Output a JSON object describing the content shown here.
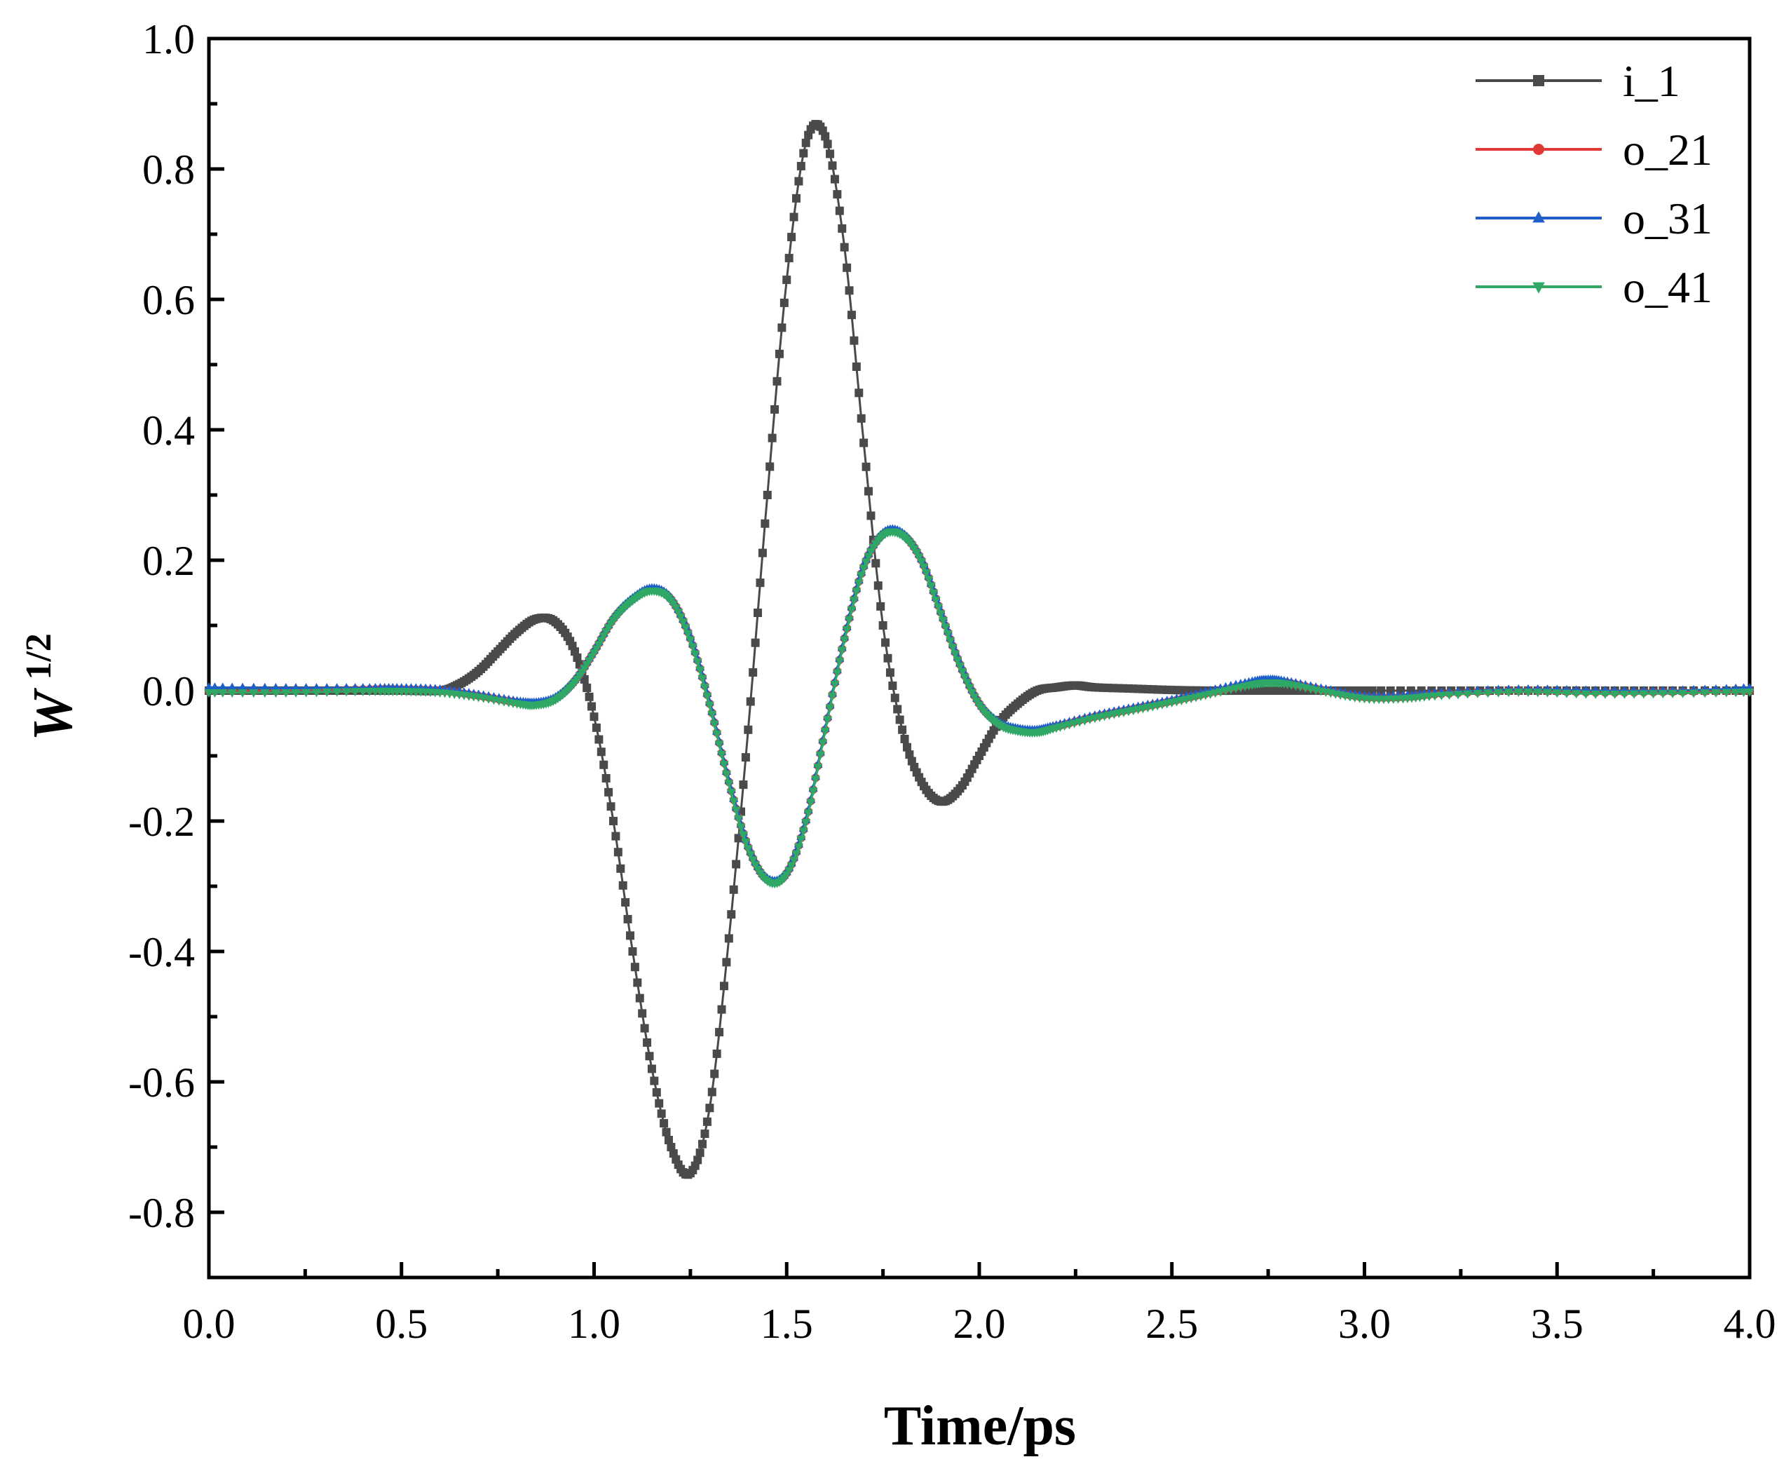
{
  "chart_data": {
    "type": "line",
    "xlabel": "Time/ps",
    "ylabel_main": "W",
    "ylabel_sup": "1/2",
    "xlim": [
      0,
      4
    ],
    "ylim": [
      -0.9,
      1.0
    ],
    "x_ticks": [
      "0.0",
      "0.5",
      "1.0",
      "1.5",
      "2.0",
      "2.5",
      "3.0",
      "3.5",
      "4.0"
    ],
    "y_ticks": [
      "-0.8",
      "-0.6",
      "-0.4",
      "-0.2",
      "0.0",
      "0.2",
      "0.4",
      "0.6",
      "0.8",
      "1.0"
    ],
    "legend_position": "top-right",
    "grid": false,
    "series": [
      {
        "name": "i_1",
        "color": "#4a4a4a",
        "marker": "square",
        "x": [
          0,
          0.1,
          0.2,
          0.3,
          0.4,
          0.5,
          0.6,
          0.65,
          0.7,
          0.75,
          0.8,
          0.85,
          0.9,
          0.95,
          1.0,
          1.05,
          1.1,
          1.15,
          1.2,
          1.25,
          1.3,
          1.35,
          1.4,
          1.45,
          1.5,
          1.55,
          1.6,
          1.65,
          1.7,
          1.75,
          1.8,
          1.85,
          1.9,
          1.95,
          2.0,
          2.05,
          2.1,
          2.15,
          2.2,
          2.25,
          2.3,
          2.4,
          2.5,
          2.6,
          2.7,
          2.8,
          2.9,
          3.0,
          3.2,
          3.4,
          3.6,
          3.8,
          4.0
        ],
        "y": [
          0,
          0,
          0,
          0,
          0,
          0,
          0.0,
          0.01,
          0.03,
          0.06,
          0.09,
          0.11,
          0.105,
          0.06,
          -0.04,
          -0.2,
          -0.4,
          -0.58,
          -0.7,
          -0.74,
          -0.64,
          -0.38,
          -0.06,
          0.3,
          0.63,
          0.84,
          0.85,
          0.68,
          0.38,
          0.1,
          -0.06,
          -0.14,
          -0.17,
          -0.15,
          -0.1,
          -0.05,
          -0.02,
          0.0,
          0.005,
          0.008,
          0.005,
          0.003,
          0.001,
          0.0,
          0.0,
          0.0,
          0.0,
          0.0,
          0.0,
          0.0,
          0.0,
          0.0,
          0.0
        ]
      },
      {
        "name": "o_21",
        "color": "#e03a36",
        "marker": "circle",
        "x": [
          0,
          0.2,
          0.4,
          0.5,
          0.6,
          0.7,
          0.8,
          0.85,
          0.9,
          0.95,
          1.0,
          1.05,
          1.1,
          1.15,
          1.2,
          1.25,
          1.3,
          1.35,
          1.4,
          1.45,
          1.5,
          1.55,
          1.6,
          1.65,
          1.7,
          1.75,
          1.8,
          1.85,
          1.9,
          1.95,
          2.0,
          2.05,
          2.1,
          2.15,
          2.2,
          2.3,
          2.4,
          2.5,
          2.6,
          2.7,
          2.75,
          2.8,
          2.9,
          3.0,
          3.1,
          3.2,
          3.4,
          3.6,
          3.8,
          4.0
        ],
        "y": [
          0,
          0,
          0.002,
          0.002,
          0,
          -0.008,
          -0.018,
          -0.02,
          -0.012,
          0.015,
          0.06,
          0.11,
          0.14,
          0.155,
          0.14,
          0.08,
          -0.02,
          -0.14,
          -0.24,
          -0.29,
          -0.28,
          -0.2,
          -0.06,
          0.08,
          0.19,
          0.24,
          0.24,
          0.2,
          0.12,
          0.04,
          -0.02,
          -0.05,
          -0.06,
          -0.062,
          -0.055,
          -0.04,
          -0.028,
          -0.016,
          -0.003,
          0.01,
          0.014,
          0.012,
          0.0,
          -0.01,
          -0.01,
          -0.005,
          0.0,
          -0.003,
          -0.002,
          0.0
        ]
      },
      {
        "name": "o_31",
        "color": "#1f5fc9",
        "marker": "triangle-up",
        "x": [
          0,
          0.2,
          0.4,
          0.5,
          0.6,
          0.7,
          0.8,
          0.85,
          0.9,
          0.95,
          1.0,
          1.05,
          1.1,
          1.15,
          1.2,
          1.25,
          1.3,
          1.35,
          1.4,
          1.45,
          1.5,
          1.55,
          1.6,
          1.65,
          1.7,
          1.75,
          1.8,
          1.85,
          1.9,
          1.95,
          2.0,
          2.05,
          2.1,
          2.15,
          2.2,
          2.3,
          2.4,
          2.5,
          2.6,
          2.7,
          2.75,
          2.8,
          2.9,
          3.0,
          3.1,
          3.2,
          3.4,
          3.6,
          3.8,
          4.0
        ],
        "y": [
          0.005,
          0.004,
          0.004,
          0.004,
          0.002,
          -0.006,
          -0.016,
          -0.018,
          -0.01,
          0.017,
          0.062,
          0.112,
          0.142,
          0.157,
          0.142,
          0.082,
          -0.018,
          -0.138,
          -0.238,
          -0.288,
          -0.278,
          -0.198,
          -0.058,
          0.082,
          0.192,
          0.242,
          0.242,
          0.202,
          0.122,
          0.042,
          -0.018,
          -0.048,
          -0.058,
          -0.06,
          -0.053,
          -0.038,
          -0.026,
          -0.014,
          0.0,
          0.013,
          0.017,
          0.014,
          0.002,
          -0.008,
          -0.008,
          -0.003,
          0.002,
          0.0,
          0.0,
          0.004
        ]
      },
      {
        "name": "o_41",
        "color": "#2fa866",
        "marker": "triangle-down",
        "x": [
          0,
          0.2,
          0.4,
          0.5,
          0.6,
          0.7,
          0.8,
          0.85,
          0.9,
          0.95,
          1.0,
          1.05,
          1.1,
          1.15,
          1.2,
          1.25,
          1.3,
          1.35,
          1.4,
          1.45,
          1.5,
          1.55,
          1.6,
          1.65,
          1.7,
          1.75,
          1.8,
          1.85,
          1.9,
          1.95,
          2.0,
          2.05,
          2.1,
          2.15,
          2.2,
          2.3,
          2.4,
          2.5,
          2.6,
          2.7,
          2.75,
          2.8,
          2.9,
          3.0,
          3.1,
          3.2,
          3.4,
          3.6,
          3.8,
          4.0
        ],
        "y": [
          -0.003,
          -0.003,
          -0.001,
          -0.001,
          -0.003,
          -0.01,
          -0.02,
          -0.022,
          -0.014,
          0.013,
          0.058,
          0.108,
          0.138,
          0.153,
          0.138,
          0.078,
          -0.022,
          -0.142,
          -0.242,
          -0.292,
          -0.282,
          -0.202,
          -0.062,
          0.078,
          0.188,
          0.238,
          0.238,
          0.198,
          0.118,
          0.038,
          -0.022,
          -0.052,
          -0.062,
          -0.064,
          -0.057,
          -0.042,
          -0.03,
          -0.018,
          -0.005,
          0.008,
          0.012,
          0.01,
          -0.002,
          -0.012,
          -0.012,
          -0.007,
          -0.002,
          -0.005,
          -0.004,
          -0.002
        ]
      }
    ]
  }
}
